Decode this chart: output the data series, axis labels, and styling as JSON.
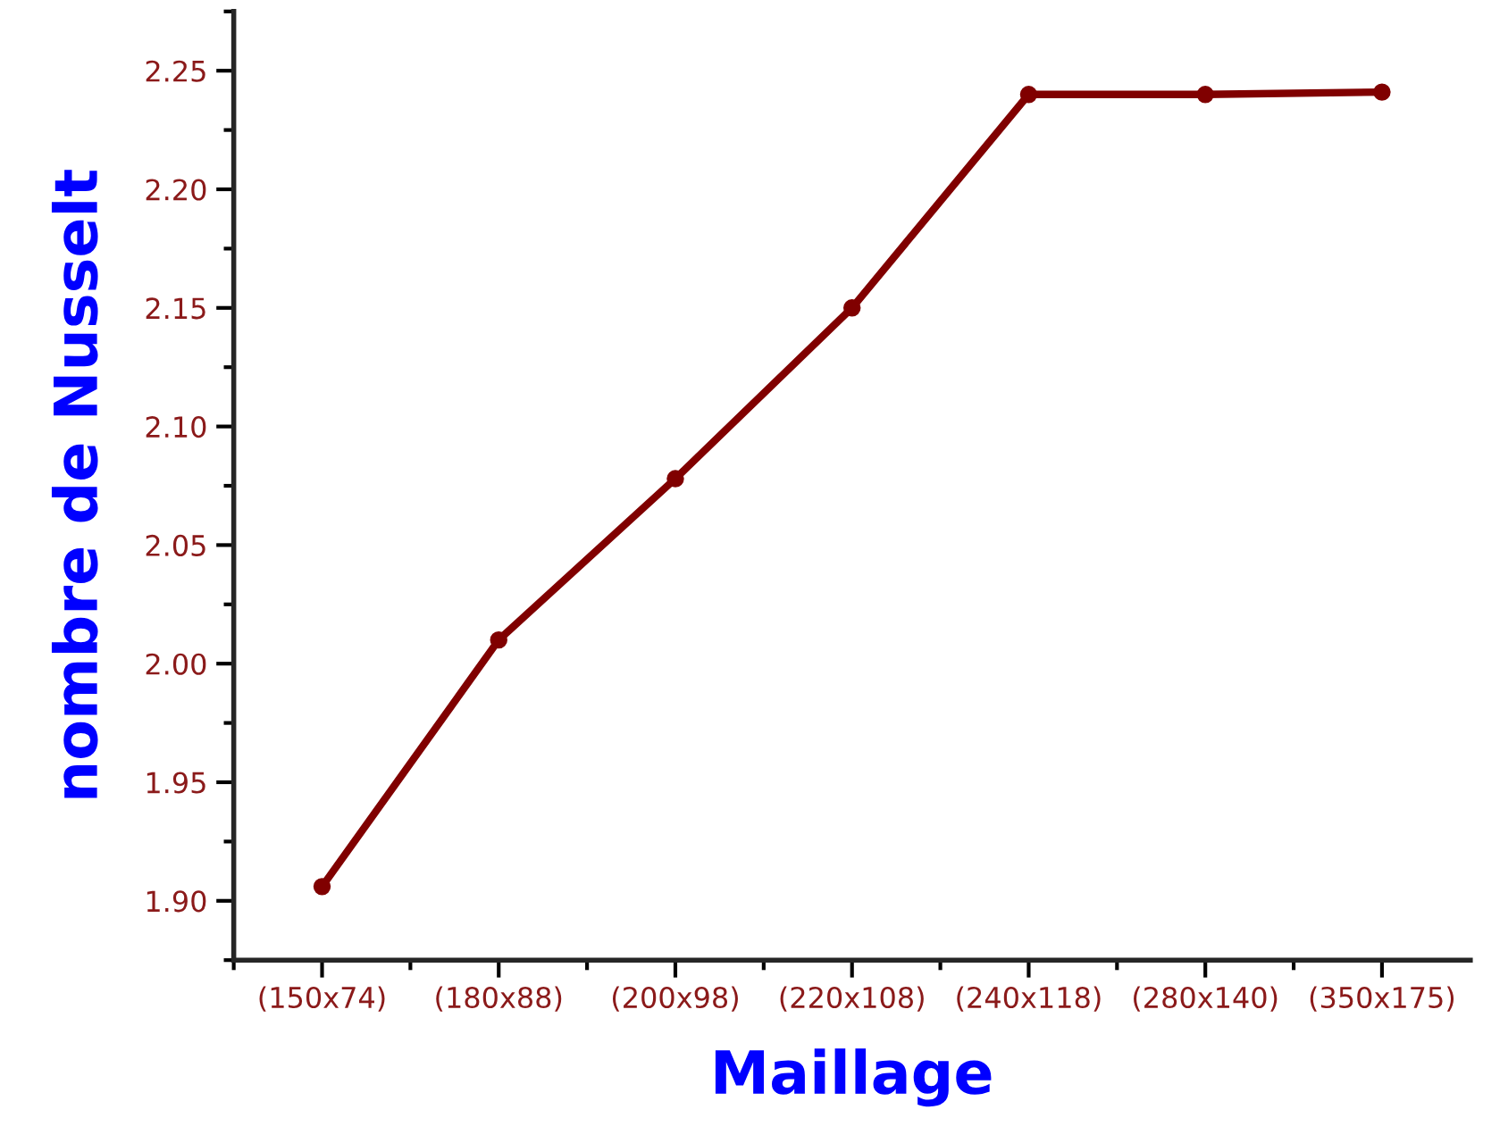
{
  "chart_data": {
    "type": "line",
    "xlabel": "Maillage",
    "ylabel": "nombre de Nusselt",
    "categories": [
      "(150x74)",
      "(180x88)",
      "(200x98)",
      "(220x108)",
      "(240x118)",
      "(280x140)",
      "(350x175)"
    ],
    "series": [
      {
        "color": "#800000",
        "values": [
          1.906,
          2.01,
          2.078,
          2.15,
          2.24,
          2.24,
          2.241
        ]
      }
    ],
    "ylim": [
      1.875,
      2.275
    ],
    "yticks": [
      {
        "value": 1.9,
        "label": "1.90"
      },
      {
        "value": 1.95,
        "label": "1.95"
      },
      {
        "value": 2.0,
        "label": "2.00"
      },
      {
        "value": 2.05,
        "label": "2.05"
      },
      {
        "value": 2.1,
        "label": "2.10"
      },
      {
        "value": 2.15,
        "label": "2.15"
      },
      {
        "value": 2.2,
        "label": "2.20"
      },
      {
        "value": 2.25,
        "label": "2.25"
      }
    ],
    "marker": "circle",
    "line_style": "solid",
    "grid": false
  }
}
